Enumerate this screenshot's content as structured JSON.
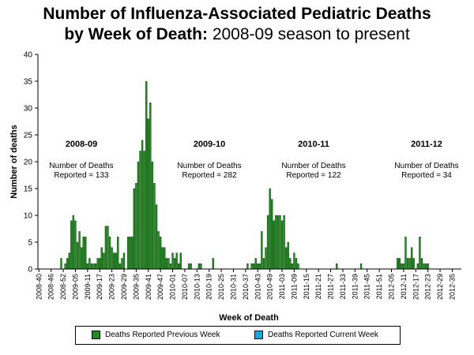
{
  "title": {
    "line1": "Number of Influenza-Associated Pediatric Deaths",
    "line2_bold": "by Week of Death:",
    "line2_rest": " 2008-09 season to present"
  },
  "colors": {
    "previous_week": "#1e8c1e",
    "current_week": "#19a8d8",
    "axis": "#000000"
  },
  "legend": {
    "previous_week_label": "Deaths Reported Previous Week",
    "current_week_label": "Deaths Reported Current Week"
  },
  "annotations": [
    {
      "season": "2008-09",
      "line1": "Number of Deaths",
      "line2": "Reported = 133"
    },
    {
      "season": "2009-10",
      "line1": "Number of Deaths",
      "line2": "Reported = 282"
    },
    {
      "season": "2010-11",
      "line1": "Number of Deaths",
      "line2": "Reported = 122"
    },
    {
      "season": "2011-12",
      "line1": "Number of Deaths",
      "line2": "Reported = 34"
    }
  ],
  "chart_data": {
    "type": "bar",
    "xlabel": "Week of Death",
    "ylabel": "Number of deaths",
    "ylim": [
      0,
      40
    ],
    "yticks": [
      0,
      5,
      10,
      15,
      20,
      25,
      30,
      35,
      40
    ],
    "x_range": [
      "2008-40",
      "2012-39"
    ],
    "xticks": [
      "2008-40",
      "2008-46",
      "2008-52",
      "2009-05",
      "2009-11",
      "2009-17",
      "2009-23",
      "2009-29",
      "2009-35",
      "2009-41",
      "2009-47",
      "2010-01",
      "2010-07",
      "2010-13",
      "2010-19",
      "2010-25",
      "2010-31",
      "2010-37",
      "2010-43",
      "2010-49",
      "2011-03",
      "2011-09",
      "2011-15",
      "2011-21",
      "2011-27",
      "2011-33",
      "2011-39",
      "2011-45",
      "2011-51",
      "2012-05",
      "2012-11",
      "2012-17",
      "2012-23",
      "2012-29",
      "2012-35"
    ],
    "series": [
      {
        "name": "Deaths Reported Previous Week",
        "values": [
          0,
          0,
          0,
          0,
          0,
          0,
          0,
          0,
          0,
          0,
          0,
          2,
          0,
          1,
          2,
          3,
          9,
          10,
          9,
          5,
          7,
          4,
          6,
          6,
          1,
          2,
          1,
          1,
          1,
          2,
          2,
          4,
          3,
          8,
          8,
          6,
          4,
          3,
          3,
          6,
          1,
          2,
          3,
          0,
          6,
          6,
          6,
          15,
          16,
          20,
          22,
          24,
          22,
          35,
          28,
          31,
          20,
          16,
          12,
          7,
          6,
          4,
          4,
          2,
          2,
          1,
          3,
          2,
          3,
          1,
          3,
          0,
          0,
          0,
          1,
          1,
          0,
          0,
          0,
          1,
          1,
          0,
          0,
          0,
          0,
          0,
          2,
          0,
          0,
          0,
          0,
          0,
          0,
          0,
          0,
          0,
          0,
          0,
          0,
          0,
          0,
          0,
          0,
          1,
          0,
          1,
          1,
          2,
          1,
          1,
          7,
          2,
          4,
          10,
          15,
          13,
          9,
          10,
          10,
          10,
          9,
          10,
          4,
          5,
          2,
          1,
          3,
          2,
          1,
          0,
          0,
          0,
          0,
          0,
          0,
          0,
          0,
          0,
          0,
          0,
          0,
          0,
          0,
          0,
          0,
          0,
          0,
          1,
          0,
          0,
          0,
          0,
          0,
          0,
          0,
          0,
          0,
          0,
          0,
          1,
          0,
          0,
          0,
          0,
          0,
          0,
          0,
          0,
          0,
          0,
          0,
          0,
          0,
          0,
          0,
          0,
          0,
          2,
          2,
          1,
          1,
          6,
          2,
          2,
          4,
          2,
          0,
          1,
          6,
          2,
          1,
          1,
          1,
          0,
          0,
          0,
          0,
          0,
          0,
          0,
          0,
          0,
          0,
          0,
          0,
          0,
          0,
          0,
          0,
          0
        ]
      },
      {
        "name": "Deaths Reported Current Week",
        "values": []
      }
    ]
  }
}
